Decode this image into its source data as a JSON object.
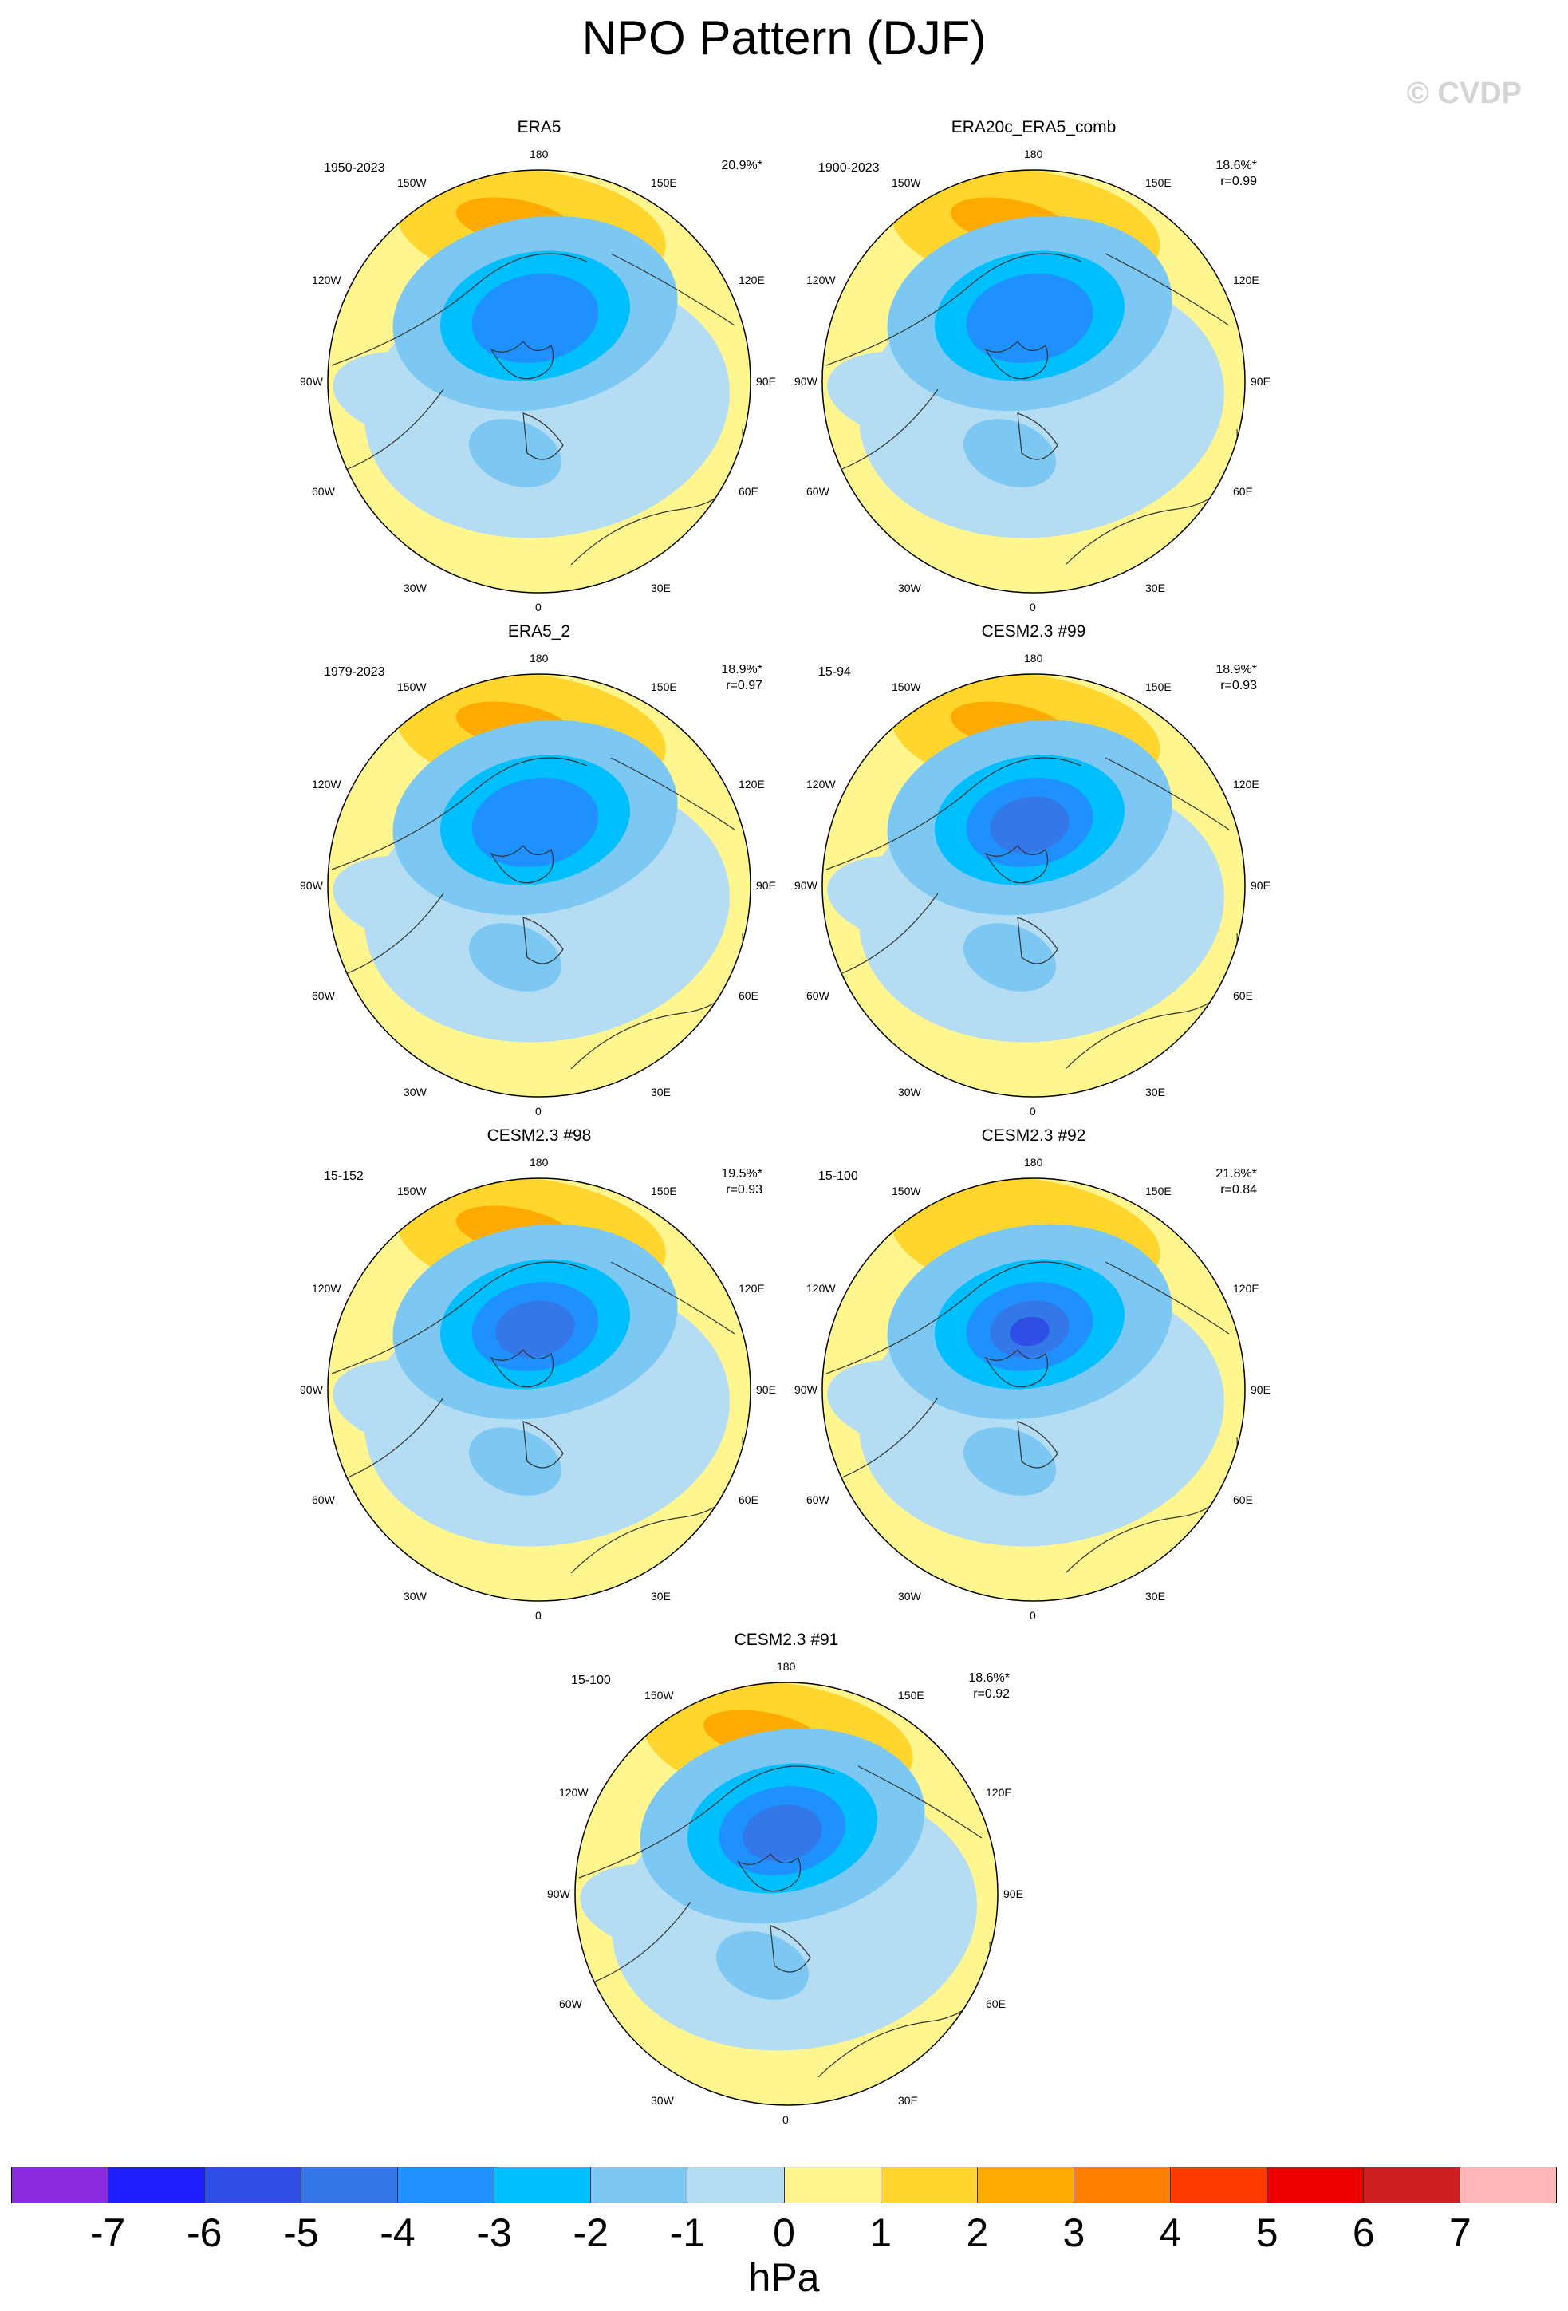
{
  "title": "NPO Pattern (DJF)",
  "watermark": "© CVDP",
  "units": "hPa",
  "colors": {
    "-7": "#8A2BE2",
    "-6": "#1E1EFF",
    "-5": "#2E4EE6",
    "-4": "#3478E8",
    "-3": "#1E90FF",
    "-2": "#00BFFF",
    "-1": "#7CC8F2",
    "0a": "#B4DDF4",
    "0b": "#FFF68F",
    "1": "#FFD52E",
    "2": "#FFAA00",
    "3": "#FF7F00",
    "4": "#FF3A00",
    "5": "#EE0000",
    "6": "#CD1F1F",
    "7": "#FFB6B6"
  },
  "colorbar": {
    "colors": [
      "#8A2BE2",
      "#1E1EFF",
      "#2E4EE6",
      "#3478E8",
      "#1E90FF",
      "#00BFFF",
      "#7CC8F2",
      "#B4DDF4",
      "#FFF68F",
      "#FFD52E",
      "#FFAA00",
      "#FF7F00",
      "#FF3A00",
      "#EE0000",
      "#CD1F1F",
      "#FFB6B6"
    ],
    "labels": [
      "-7",
      "-6",
      "-5",
      "-4",
      "-3",
      "-2",
      "-1",
      "0",
      "1",
      "2",
      "3",
      "4",
      "5",
      "6",
      "7"
    ]
  },
  "lon_labels": {
    "top": "180",
    "bottom": "0",
    "upper_left": "150W",
    "upper_right": "150E",
    "mid_upper_left": "120W",
    "mid_upper_right": "120E",
    "left": "90W",
    "right": "90E",
    "mid_lower_left": "60W",
    "mid_lower_right": "60E",
    "lower_left": "30W",
    "lower_right": "30E"
  },
  "panels": [
    {
      "title": "ERA5",
      "period": "1950-2023",
      "stats_line1": "20.9%*",
      "stats_line2": "",
      "low_level": -3,
      "high_level": 2
    },
    {
      "title": "ERA20c_ERA5_comb",
      "period": "1900-2023",
      "stats_line1": "18.6%*",
      "stats_line2": "r=0.99",
      "low_level": -3,
      "high_level": 2
    },
    {
      "title": "ERA5_2",
      "period": "1979-2023",
      "stats_line1": "18.9%*",
      "stats_line2": "r=0.97",
      "low_level": -3,
      "high_level": 2
    },
    {
      "title": "CESM2.3 #99",
      "period": "15-94",
      "stats_line1": "18.9%*",
      "stats_line2": "r=0.93",
      "low_level": -4,
      "high_level": 2
    },
    {
      "title": "CESM2.3 #98",
      "period": "15-152",
      "stats_line1": "19.5%*",
      "stats_line2": "r=0.93",
      "low_level": -4,
      "high_level": 2
    },
    {
      "title": "CESM2.3 #92",
      "period": "15-100",
      "stats_line1": "21.8%*",
      "stats_line2": "r=0.84",
      "low_level": -5,
      "high_level": 1
    },
    {
      "title": "CESM2.3 #91",
      "period": "15-100",
      "stats_line1": "18.6%*",
      "stats_line2": "r=0.92",
      "low_level": -4,
      "high_level": 2
    }
  ]
}
